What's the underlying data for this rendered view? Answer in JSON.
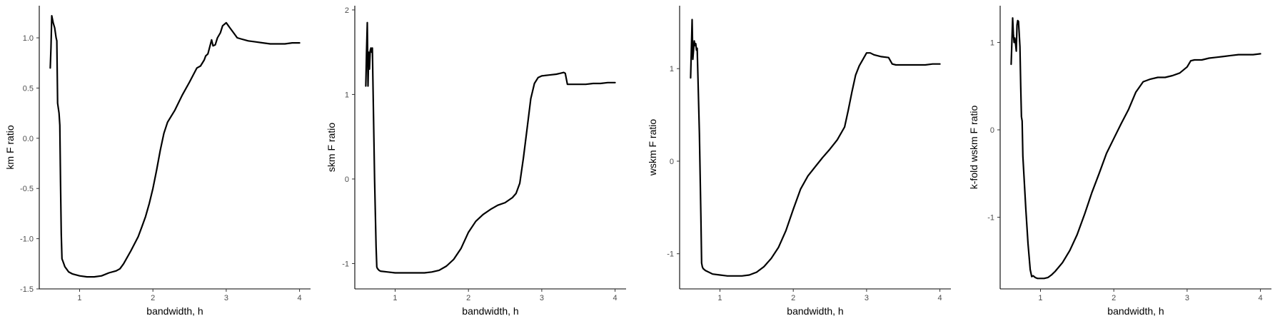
{
  "figure": {
    "line_color": "#000000",
    "background": "#ffffff"
  },
  "chart_data": [
    {
      "type": "line",
      "xlabel": "bandwidth, h",
      "ylabel": "km F ratio",
      "xlim": [
        0.45,
        4.15
      ],
      "ylim": [
        -1.5,
        1.32
      ],
      "xticks": [
        1,
        2,
        3,
        4
      ],
      "yticks": [
        -1.5,
        -1.0,
        -0.5,
        0.0,
        0.5,
        1.0
      ],
      "ytick_labels": [
        "-1.5",
        "-1.0",
        "-0.5",
        "0.0",
        "0.5",
        "1.0"
      ],
      "grid": false,
      "series": [
        {
          "x": [
            0.6,
            0.61,
            0.62,
            0.64,
            0.66,
            0.67,
            0.68,
            0.69,
            0.7,
            0.72,
            0.73,
            0.74,
            0.75,
            0.76,
            0.77,
            0.78,
            0.8,
            0.82,
            0.85,
            0.9,
            1.0,
            1.1,
            1.2,
            1.3,
            1.4,
            1.5,
            1.55,
            1.6,
            1.7,
            1.8,
            1.85,
            1.9,
            1.95,
            2.0,
            2.05,
            2.1,
            2.15,
            2.2,
            2.3,
            2.4,
            2.5,
            2.6,
            2.65,
            2.7,
            2.72,
            2.75,
            2.8,
            2.82,
            2.85,
            2.88,
            2.92,
            2.95,
            3.0,
            3.02,
            3.05,
            3.1,
            3.15,
            3.2,
            3.3,
            3.4,
            3.5,
            3.6,
            3.7,
            3.8,
            3.9,
            4.0
          ],
          "y": [
            0.7,
            0.9,
            1.22,
            1.15,
            1.1,
            1.05,
            1.0,
            0.97,
            0.35,
            0.25,
            0.13,
            -0.45,
            -0.95,
            -1.2,
            -1.22,
            -1.24,
            -1.28,
            -1.3,
            -1.33,
            -1.35,
            -1.37,
            -1.38,
            -1.38,
            -1.37,
            -1.34,
            -1.32,
            -1.3,
            -1.25,
            -1.12,
            -0.98,
            -0.88,
            -0.78,
            -0.65,
            -0.5,
            -0.32,
            -0.12,
            0.05,
            0.16,
            0.28,
            0.43,
            0.56,
            0.7,
            0.72,
            0.78,
            0.82,
            0.84,
            0.98,
            0.92,
            0.93,
            1.0,
            1.05,
            1.12,
            1.15,
            1.13,
            1.1,
            1.05,
            1.0,
            0.99,
            0.97,
            0.96,
            0.95,
            0.94,
            0.94,
            0.94,
            0.95,
            0.95
          ]
        }
      ]
    },
    {
      "type": "line",
      "xlabel": "bandwidth, h",
      "ylabel": "skm F ratio",
      "xlim": [
        0.45,
        4.15
      ],
      "ylim": [
        -1.3,
        2.05
      ],
      "xticks": [
        1,
        2,
        3,
        4
      ],
      "yticks": [
        -1,
        0,
        1,
        2
      ],
      "ytick_labels": [
        "-1",
        "0",
        "1",
        "2"
      ],
      "grid": false,
      "series": [
        {
          "x": [
            0.6,
            0.61,
            0.62,
            0.63,
            0.64,
            0.65,
            0.66,
            0.67,
            0.68,
            0.69,
            0.7,
            0.72,
            0.74,
            0.75,
            0.76,
            0.77,
            0.78,
            0.8,
            0.9,
            1.0,
            1.1,
            1.2,
            1.3,
            1.4,
            1.5,
            1.6,
            1.7,
            1.8,
            1.9,
            2.0,
            2.1,
            2.2,
            2.3,
            2.4,
            2.5,
            2.6,
            2.65,
            2.7,
            2.75,
            2.8,
            2.85,
            2.9,
            2.95,
            3.0,
            3.1,
            3.2,
            3.25,
            3.3,
            3.32,
            3.35,
            3.4,
            3.5,
            3.6,
            3.7,
            3.8,
            3.9,
            4.0
          ],
          "y": [
            1.1,
            1.5,
            1.85,
            1.1,
            1.5,
            1.3,
            1.52,
            1.55,
            1.5,
            1.55,
            1.0,
            0.0,
            -0.8,
            -1.04,
            -1.06,
            -1.07,
            -1.08,
            -1.09,
            -1.1,
            -1.11,
            -1.11,
            -1.11,
            -1.11,
            -1.11,
            -1.1,
            -1.08,
            -1.03,
            -0.95,
            -0.82,
            -0.63,
            -0.5,
            -0.42,
            -0.36,
            -0.31,
            -0.28,
            -0.22,
            -0.17,
            -0.05,
            0.25,
            0.6,
            0.95,
            1.13,
            1.2,
            1.22,
            1.23,
            1.24,
            1.25,
            1.26,
            1.25,
            1.12,
            1.12,
            1.12,
            1.12,
            1.13,
            1.13,
            1.14,
            1.14
          ]
        }
      ]
    },
    {
      "type": "line",
      "xlabel": "bandwidth, h",
      "ylabel": "wskm F ratio",
      "xlim": [
        0.45,
        4.15
      ],
      "ylim": [
        -1.38,
        1.68
      ],
      "xticks": [
        1,
        2,
        3,
        4
      ],
      "yticks": [
        -1,
        0,
        1
      ],
      "ytick_labels": [
        "-1",
        "0",
        "1"
      ],
      "grid": false,
      "series": [
        {
          "x": [
            0.6,
            0.61,
            0.62,
            0.63,
            0.64,
            0.65,
            0.66,
            0.67,
            0.68,
            0.69,
            0.7,
            0.72,
            0.74,
            0.75,
            0.76,
            0.77,
            0.8,
            0.9,
            1.0,
            1.1,
            1.2,
            1.3,
            1.4,
            1.5,
            1.6,
            1.7,
            1.8,
            1.9,
            2.0,
            2.1,
            2.2,
            2.3,
            2.4,
            2.5,
            2.6,
            2.7,
            2.75,
            2.8,
            2.85,
            2.9,
            2.95,
            3.0,
            3.05,
            3.1,
            3.2,
            3.3,
            3.35,
            3.4,
            3.5,
            3.6,
            3.7,
            3.8,
            3.9,
            4.0
          ],
          "y": [
            0.9,
            1.2,
            1.53,
            1.1,
            1.2,
            1.3,
            1.25,
            1.27,
            1.2,
            1.22,
            0.9,
            0.3,
            -0.6,
            -1.1,
            -1.14,
            -1.16,
            -1.18,
            -1.22,
            -1.23,
            -1.24,
            -1.24,
            -1.24,
            -1.23,
            -1.2,
            -1.14,
            -1.05,
            -0.93,
            -0.75,
            -0.52,
            -0.3,
            -0.16,
            -0.06,
            0.04,
            0.13,
            0.23,
            0.37,
            0.55,
            0.75,
            0.93,
            1.03,
            1.1,
            1.17,
            1.17,
            1.15,
            1.13,
            1.12,
            1.05,
            1.04,
            1.04,
            1.04,
            1.04,
            1.04,
            1.05,
            1.05
          ]
        }
      ]
    },
    {
      "type": "line",
      "xlabel": "bandwidth, h",
      "ylabel": "k-fold wskm F ratio",
      "xlim": [
        0.45,
        4.15
      ],
      "ylim": [
        -1.82,
        1.42
      ],
      "xticks": [
        1,
        2,
        3,
        4
      ],
      "yticks": [
        -1,
        0,
        1
      ],
      "ytick_labels": [
        "-1",
        "0",
        "1"
      ],
      "grid": false,
      "series": [
        {
          "x": [
            0.6,
            0.61,
            0.62,
            0.63,
            0.64,
            0.65,
            0.66,
            0.67,
            0.68,
            0.69,
            0.7,
            0.71,
            0.72,
            0.73,
            0.74,
            0.75,
            0.76,
            0.8,
            0.83,
            0.86,
            0.88,
            0.9,
            0.93,
            0.96,
            1.0,
            1.05,
            1.1,
            1.15,
            1.2,
            1.3,
            1.4,
            1.5,
            1.6,
            1.7,
            1.8,
            1.9,
            2.0,
            2.1,
            2.2,
            2.3,
            2.4,
            2.5,
            2.6,
            2.7,
            2.8,
            2.9,
            3.0,
            3.05,
            3.1,
            3.15,
            3.2,
            3.3,
            3.4,
            3.5,
            3.6,
            3.7,
            3.8,
            3.9,
            4.0
          ],
          "y": [
            0.75,
            1.0,
            1.28,
            1.1,
            1.0,
            1.05,
            0.98,
            0.9,
            1.2,
            1.25,
            1.24,
            1.1,
            0.95,
            0.5,
            0.15,
            0.1,
            -0.3,
            -0.9,
            -1.3,
            -1.6,
            -1.68,
            -1.67,
            -1.69,
            -1.7,
            -1.7,
            -1.7,
            -1.69,
            -1.66,
            -1.62,
            -1.52,
            -1.38,
            -1.2,
            -0.97,
            -0.72,
            -0.5,
            -0.27,
            -0.1,
            0.07,
            0.23,
            0.43,
            0.55,
            0.58,
            0.6,
            0.6,
            0.62,
            0.65,
            0.72,
            0.79,
            0.8,
            0.8,
            0.8,
            0.82,
            0.83,
            0.84,
            0.85,
            0.86,
            0.86,
            0.86,
            0.87
          ]
        }
      ]
    }
  ]
}
